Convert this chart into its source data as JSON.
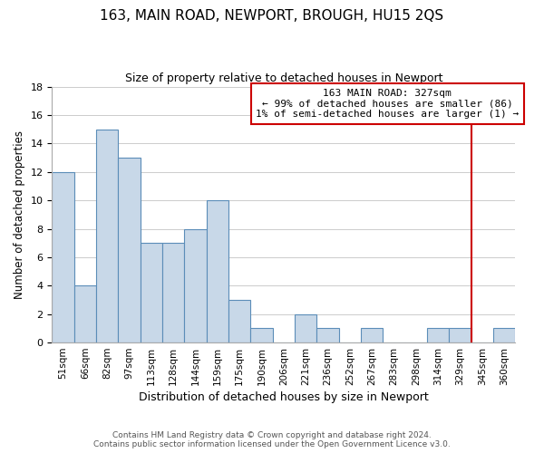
{
  "title": "163, MAIN ROAD, NEWPORT, BROUGH, HU15 2QS",
  "subtitle": "Size of property relative to detached houses in Newport",
  "xlabel": "Distribution of detached houses by size in Newport",
  "ylabel": "Number of detached properties",
  "bin_labels": [
    "51sqm",
    "66sqm",
    "82sqm",
    "97sqm",
    "113sqm",
    "128sqm",
    "144sqm",
    "159sqm",
    "175sqm",
    "190sqm",
    "206sqm",
    "221sqm",
    "236sqm",
    "252sqm",
    "267sqm",
    "283sqm",
    "298sqm",
    "314sqm",
    "329sqm",
    "345sqm",
    "360sqm"
  ],
  "bar_heights": [
    12,
    4,
    15,
    13,
    7,
    7,
    8,
    10,
    3,
    1,
    0,
    2,
    1,
    0,
    1,
    0,
    0,
    1,
    1,
    0,
    1
  ],
  "bar_color": "#c8d8e8",
  "bar_edge_color": "#5b8db8",
  "grid_color": "#cccccc",
  "property_line_x": 18.5,
  "property_line_color": "#cc0000",
  "annotation_text": "163 MAIN ROAD: 327sqm\n← 99% of detached houses are smaller (86)\n1% of semi-detached houses are larger (1) →",
  "annotation_box_color": "#ffffff",
  "annotation_box_edge": "#cc0000",
  "footer_line1": "Contains HM Land Registry data © Crown copyright and database right 2024.",
  "footer_line2": "Contains public sector information licensed under the Open Government Licence v3.0.",
  "ylim": [
    0,
    18
  ],
  "yticks": [
    0,
    2,
    4,
    6,
    8,
    10,
    12,
    14,
    16,
    18
  ],
  "background_color": "#ffffff",
  "figsize": [
    6.0,
    5.0
  ],
  "dpi": 100
}
